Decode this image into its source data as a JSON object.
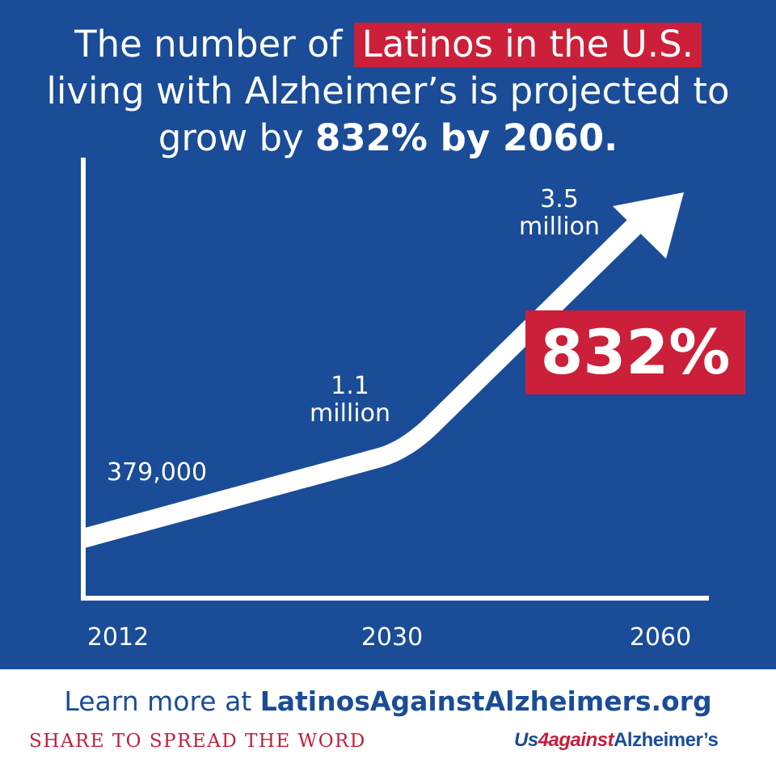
{
  "headline": {
    "pre": "The number of ",
    "highlight": "Latinos in the U.S.",
    "mid": "living with Alzheimer’s is projected to grow by ",
    "bold": "832% by 2060."
  },
  "chart_data": {
    "type": "line",
    "x": [
      "2012",
      "2030",
      "2060"
    ],
    "values": [
      379000,
      1100000,
      3500000
    ],
    "point_labels": [
      "379,000",
      "1.1\nmillion",
      "3.5\nmillion"
    ],
    "title": "",
    "xlabel": "",
    "ylabel": "",
    "grid": false,
    "series_color": "#ffffff",
    "background": "#1a4c97"
  },
  "badge": {
    "text": "832%",
    "color": "#cc1f3a"
  },
  "footer": {
    "learn_prefix": "Learn more at ",
    "learn_link": "LatinosAgainstAlzheimers.org",
    "share": "SHARE TO SPREAD THE WORD",
    "logo": {
      "us": "Us",
      "four": "4",
      "against": "against",
      "alz": "Alzheimer’s"
    }
  }
}
